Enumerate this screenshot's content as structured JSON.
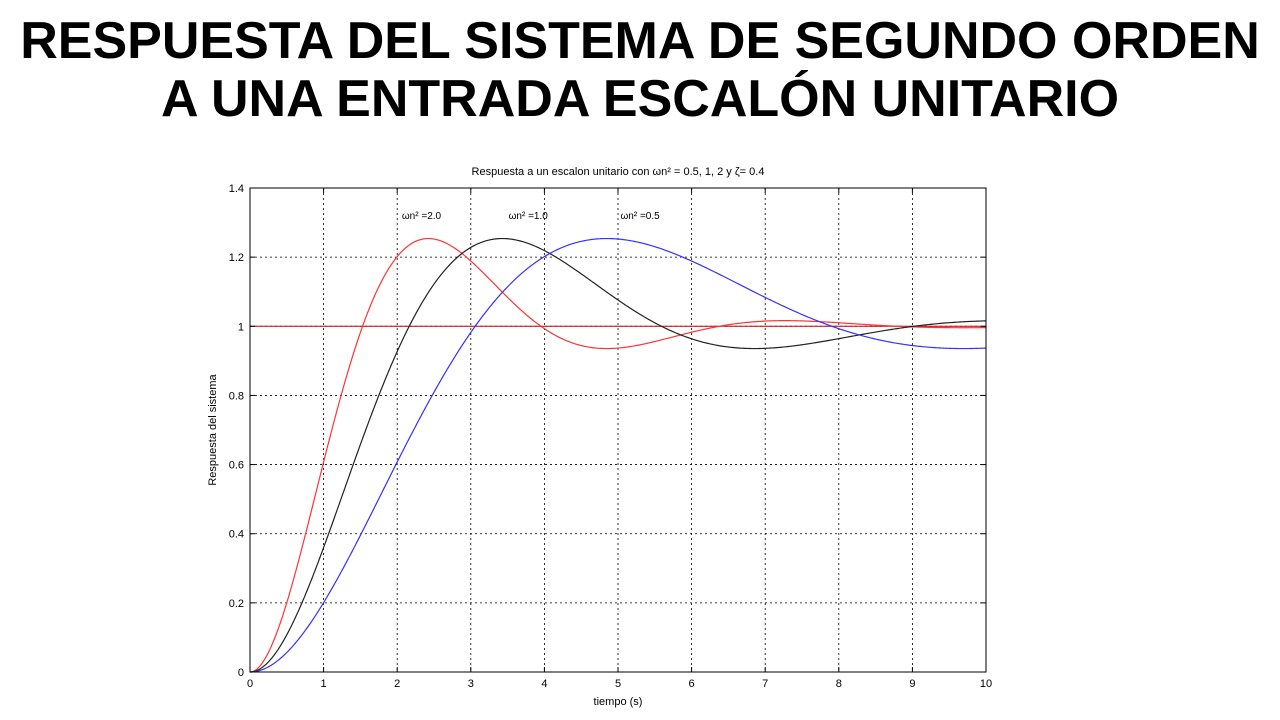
{
  "slide": {
    "title": "RESPUESTA DEL SISTEMA DE SEGUNDO ORDEN A UNA ENTRADA ESCALÓN UNITARIO"
  },
  "chart_data": {
    "type": "line",
    "title": "Respuesta a un escalon unitario con ωn² = 0.5, 1, 2 y ζ= 0.4",
    "xlabel": "tiempo (s)",
    "ylabel": "Respuesta del sistema",
    "xlim": [
      0,
      10
    ],
    "ylim": [
      0,
      1.4
    ],
    "xticks": [
      0,
      1,
      2,
      3,
      4,
      5,
      6,
      7,
      8,
      9,
      10
    ],
    "yticks": [
      0,
      0.2,
      0.4,
      0.6,
      0.8,
      1,
      1.2,
      1.4
    ],
    "ytick_labels": [
      "0",
      "0.2",
      "0.4",
      "0.6",
      "0.8",
      "1",
      "1.2",
      "1.4"
    ],
    "grid": true,
    "zeta": 0.4,
    "series": [
      {
        "label": "ωn² =2.0",
        "omega_n_squared": 2.0,
        "color": "#ff3333",
        "label_at": [
          2.33,
          1.31
        ]
      },
      {
        "label": "ωn² =1.0",
        "omega_n_squared": 1.0,
        "color": "#222222",
        "label_at": [
          3.78,
          1.31
        ]
      },
      {
        "label": "ωn² =0.5",
        "omega_n_squared": 0.5,
        "color": "#3333ff",
        "label_at": [
          5.3,
          1.31
        ]
      }
    ],
    "reference_line": {
      "y": 1,
      "color": "#cc0000"
    }
  }
}
